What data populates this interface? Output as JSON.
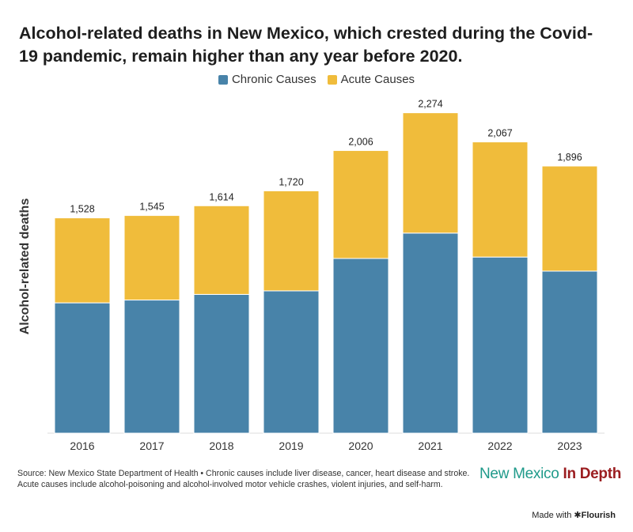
{
  "title": "Alcohol-related deaths in New Mexico, which crested during the Covid-19 pandemic, remain higher than any year before 2020.",
  "colors": {
    "chronic": "#4883a9",
    "acute": "#f0bc3b"
  },
  "chart_data": {
    "type": "bar",
    "stacked": true,
    "title": "Alcohol-related deaths in New Mexico, which crested during the Covid-19 pandemic, remain higher than any year before 2020.",
    "xlabel": "",
    "ylabel": "Alcohol-related deaths",
    "ylim": [
      0,
      2300
    ],
    "legend_position": "top-center",
    "categories": [
      "2016",
      "2017",
      "2018",
      "2019",
      "2020",
      "2021",
      "2022",
      "2023"
    ],
    "series": [
      {
        "name": "Chronic Causes",
        "values": [
          925,
          945,
          985,
          1010,
          1240,
          1420,
          1250,
          1150
        ]
      },
      {
        "name": "Acute Causes",
        "values": [
          603,
          600,
          629,
          710,
          766,
          854,
          817,
          746
        ]
      }
    ],
    "totals": [
      1528,
      1545,
      1614,
      1720,
      2006,
      2274,
      2067,
      1896
    ],
    "total_labels": [
      "1,528",
      "1,545",
      "1,614",
      "1,720",
      "2,006",
      "2,274",
      "2,067",
      "1,896"
    ]
  },
  "footer": {
    "line1": "Source: New Mexico State Department of Health • Chronic causes include liver disease, cancer, heart disease and stroke.",
    "line2": "Acute causes include alcohol-poisoning and alcohol-involved motor vehicle crashes, violent injuries, and self-harm."
  },
  "logo": {
    "part1": "New Mexico",
    "part2": "In Depth"
  },
  "credit": {
    "prefix": "Made with",
    "brand": "✱Flourish"
  }
}
